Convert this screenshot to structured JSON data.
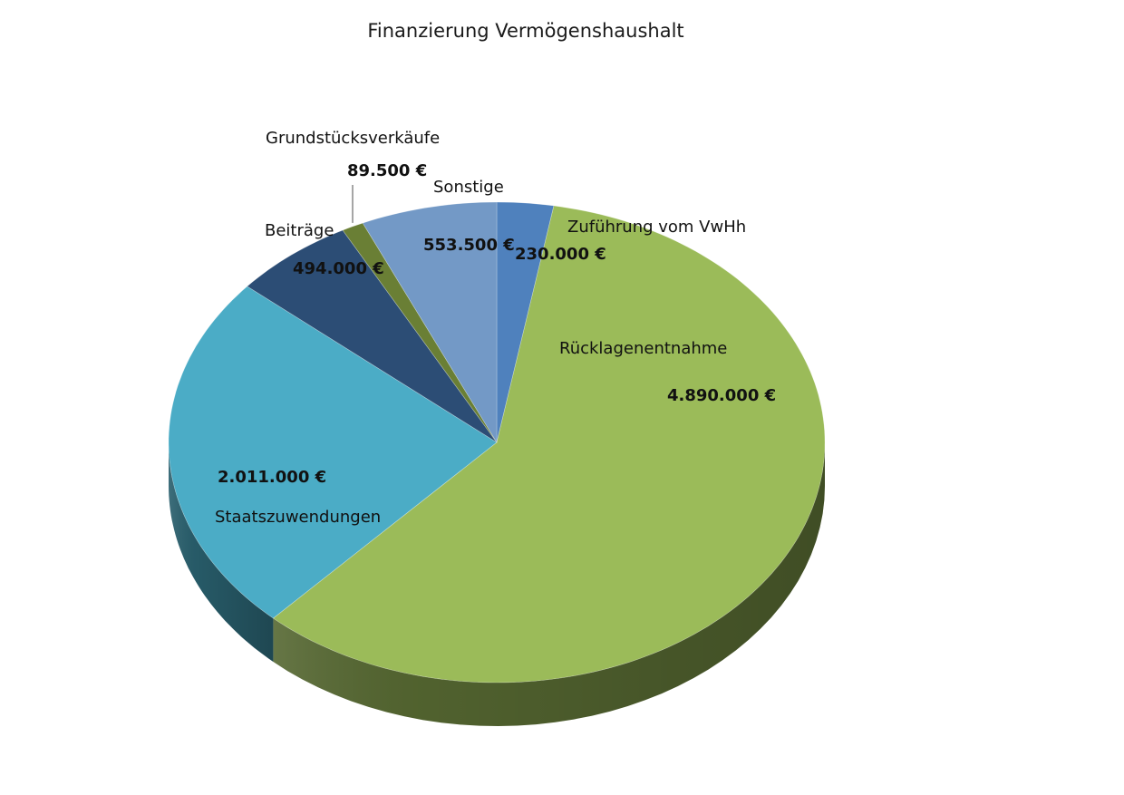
{
  "chart_data": {
    "type": "pie",
    "title": "Finanzierung Vermögenshaushalt",
    "slices": [
      {
        "label": "Zuführung vom VwHh",
        "value": 230000,
        "value_label": "230.000 €",
        "color": "#4f81bd"
      },
      {
        "label": "Rücklagenentnahme",
        "value": 4890000,
        "value_label": "4.890.000 €",
        "color": "#9bbb59"
      },
      {
        "label": "Staatszuwendungen",
        "value": 2011000,
        "value_label": "2.011.000 €",
        "color": "#4bacc6"
      },
      {
        "label": "Beiträge",
        "value": 494000,
        "value_label": "494.000 €",
        "color": "#2c4d75"
      },
      {
        "label": "Grundstücksverkäufe",
        "value": 89500,
        "value_label": "89.500 €",
        "color": "#6a7f35"
      },
      {
        "label": "Sonstige",
        "value": 553500,
        "value_label": "553.500 €",
        "color": "#7399c6"
      }
    ],
    "style": "3d-pie",
    "legend": "none",
    "start": "12 o'clock, clockwise"
  }
}
